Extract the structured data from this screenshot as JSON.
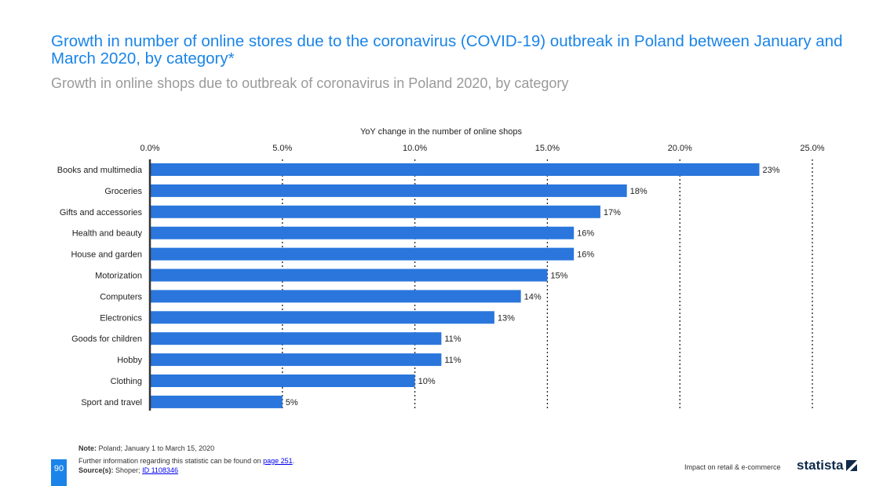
{
  "header": {
    "title": "Growth in number of online stores due to the coronavirus (COVID-19) outbreak in Poland between January and March 2020, by category*",
    "subtitle": "Growth in online shops due to outbreak of coronavirus in Poland 2020, by category"
  },
  "chart_data": {
    "type": "bar",
    "orientation": "horizontal",
    "xlabel": "YoY change in the number of online shops",
    "xlim": [
      0,
      25
    ],
    "xticks": [
      "0.0%",
      "5.0%",
      "10.0%",
      "15.0%",
      "20.0%",
      "25.0%"
    ],
    "tick_values": [
      0,
      5,
      10,
      15,
      20,
      25
    ],
    "grid": "dotted vertical",
    "categories": [
      "Books and multimedia",
      "Groceries",
      "Gifts and accessories",
      "Health and beauty",
      "House and garden",
      "Motorization",
      "Computers",
      "Electronics",
      "Goods for children",
      "Hobby",
      "Clothing",
      "Sport and travel"
    ],
    "values": [
      23,
      18,
      17,
      16,
      16,
      15,
      14,
      13,
      11,
      11,
      10,
      5
    ],
    "labels": [
      "23%",
      "18%",
      "17%",
      "16%",
      "16%",
      "15%",
      "14%",
      "13%",
      "11%",
      "11%",
      "10%",
      "5%"
    ],
    "bar_color": "#2a76dc"
  },
  "footer": {
    "note_label": "Note:",
    "note": "Poland; January 1 to March 15, 2020",
    "info": "Further information regarding this statistic can be found on",
    "info_link": "page 251",
    "source_label": "Source(s):",
    "source": "Shoper;",
    "source_link": "ID 1108346",
    "page_number": "90",
    "section": "Impact on retail & e-commerce",
    "logo": "statista"
  }
}
